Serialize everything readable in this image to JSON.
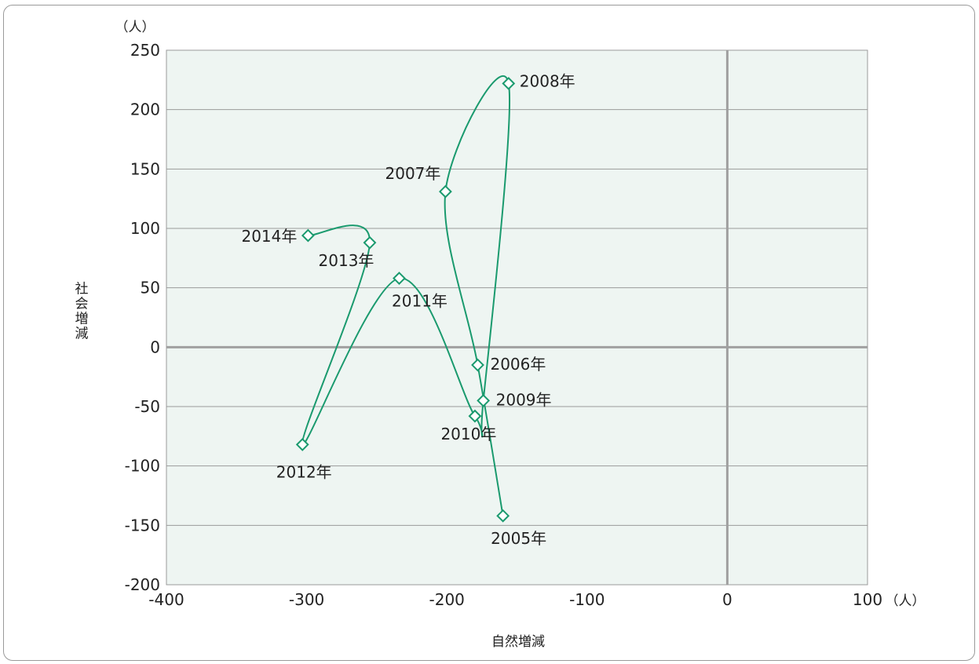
{
  "chart_data": {
    "type": "line",
    "subtype": "connected-scatter",
    "xlabel": "自然増減",
    "ylabel": "社会増減",
    "x_unit": "（人）",
    "y_unit": "（人）",
    "xlim": [
      -400,
      100
    ],
    "ylim": [
      -200,
      250
    ],
    "x_ticks": [
      -400,
      -300,
      -200,
      -100,
      0,
      100
    ],
    "y_ticks": [
      250,
      200,
      150,
      100,
      50,
      0,
      -50,
      -100,
      -150,
      -200
    ],
    "grid": "horizontal",
    "colors": {
      "line": "#1a9a6e",
      "plot_bg": "#eef5f2",
      "grid": "#9a9a9a",
      "zero_axis": "#a0a0a0",
      "marker_fill": "#ffffff"
    },
    "points": [
      {
        "label": "2005年",
        "x": -160,
        "y": -142
      },
      {
        "label": "2006年",
        "x": -178,
        "y": -15
      },
      {
        "label": "2007年",
        "x": -201,
        "y": 131
      },
      {
        "label": "2008年",
        "x": -156,
        "y": 222
      },
      {
        "label": "2009年",
        "x": -174,
        "y": -45
      },
      {
        "label": "2010年",
        "x": -180,
        "y": -58
      },
      {
        "label": "2011年",
        "x": -234,
        "y": 58
      },
      {
        "label": "2012年",
        "x": -303,
        "y": -82
      },
      {
        "label": "2013年",
        "x": -255,
        "y": 88
      },
      {
        "label": "2014年",
        "x": -299,
        "y": 94
      }
    ]
  }
}
